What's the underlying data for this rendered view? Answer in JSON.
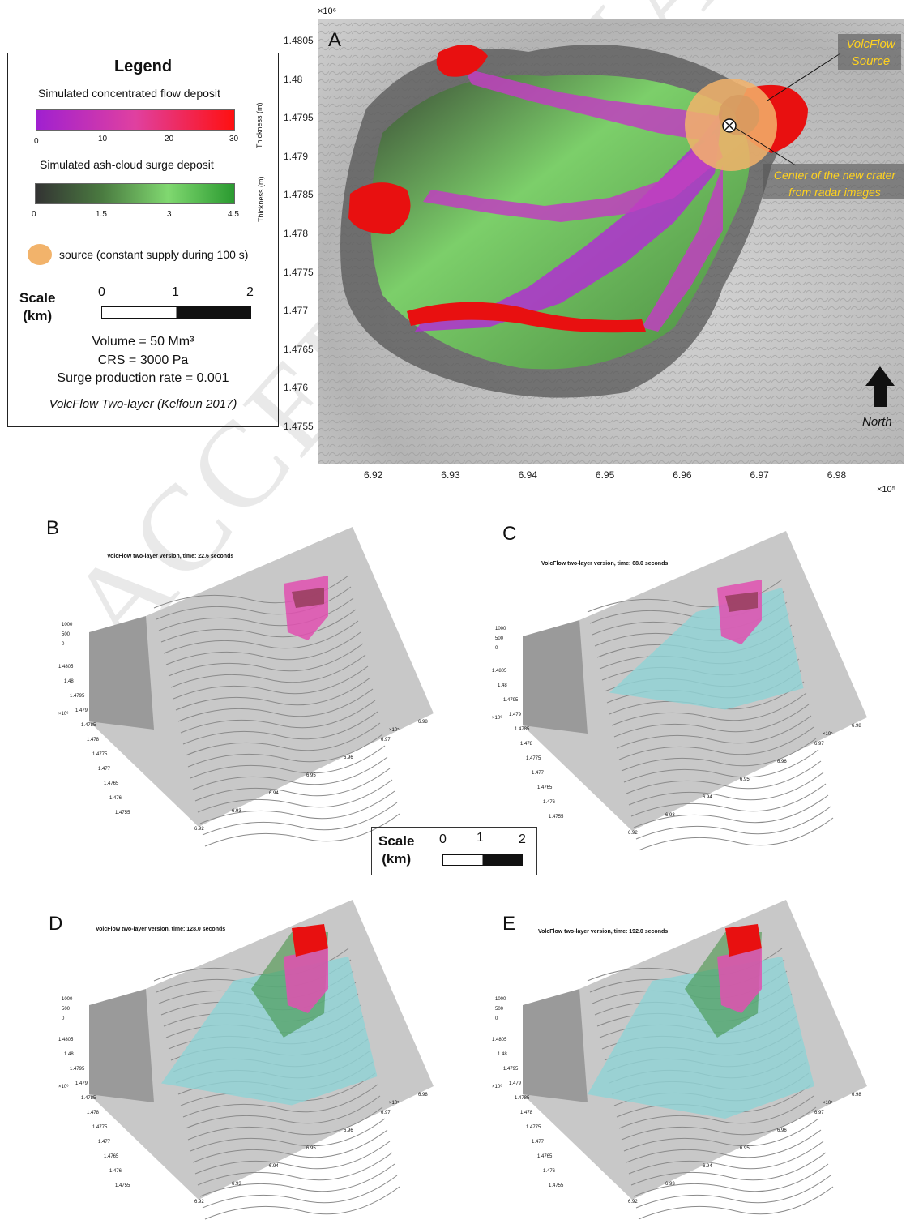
{
  "legend": {
    "title": "Legend",
    "concentrated_label": "Simulated concentrated flow deposit",
    "concentrated_ticks": [
      "0",
      "10",
      "20",
      "30"
    ],
    "surge_label": "Simulated ash-cloud surge deposit",
    "surge_ticks": [
      "0",
      "1.5",
      "3",
      "4.5"
    ],
    "thickness_label": "Thickness (m)",
    "source_label": "source (constant supply during 100 s)",
    "scale_label": "Scale\n(km)",
    "scale_ticks": [
      "0",
      "1",
      "2"
    ],
    "volume": "Volume = 50 Mm³",
    "crs": "CRS = 3000 Pa",
    "surge_rate": "Surge production rate = 0.001",
    "model": "VolcFlow Two-layer (Kelfoun 2017)",
    "colors": {
      "concentrated_low": "#a020d0",
      "concentrated_mid": "#e040a0",
      "concentrated_high": "#ff0000",
      "surge_low": "#3a3a3a",
      "surge_mid": "#80d870",
      "surge_high": "#2a9a30",
      "source": "#f2b36b"
    }
  },
  "panel_a": {
    "letter": "A",
    "y_exponent": "×10⁶",
    "x_exponent": "×10⁵",
    "y_ticks": [
      "1.4805",
      "1.48",
      "1.4795",
      "1.479",
      "1.4785",
      "1.478",
      "1.4775",
      "1.477",
      "1.4765",
      "1.476",
      "1.4755"
    ],
    "x_ticks": [
      "6.92",
      "6.93",
      "6.94",
      "6.95",
      "6.96",
      "6.97",
      "6.98"
    ],
    "source_annotation": "VolcFlow\nSource",
    "crater_annotation": "Center of the new crater\nfrom radar images",
    "north_label": "North"
  },
  "panels": [
    {
      "letter": "B",
      "title": "VolcFlow two-layer version,     time: 22.6 seconds"
    },
    {
      "letter": "C",
      "title": "VolcFlow two-layer version,     time: 68.0 seconds"
    },
    {
      "letter": "D",
      "title": "VolcFlow two-layer version,     time: 128.0 seconds"
    },
    {
      "letter": "E",
      "title": "VolcFlow two-layer version,     time: 192.0 seconds"
    }
  ],
  "mini_axes": {
    "z_ticks": [
      "1000",
      "500",
      "0"
    ],
    "y_ticks": [
      "1.4805",
      "1.48",
      "1.4795",
      "1.479",
      "1.4785",
      "1.478",
      "1.4775",
      "1.477",
      "1.4765",
      "1.476",
      "1.4755"
    ],
    "x_ticks": [
      "6.92",
      "6.93",
      "6.94",
      "6.95",
      "6.96",
      "6.97",
      "6.98"
    ],
    "y_exp": "×10⁶",
    "x_exp": "×10⁵"
  },
  "center_scale": {
    "label": "Scale\n(km)",
    "ticks": [
      "0",
      "1",
      "2"
    ]
  },
  "watermark": "ACCEPTED MANUSCRIPT"
}
